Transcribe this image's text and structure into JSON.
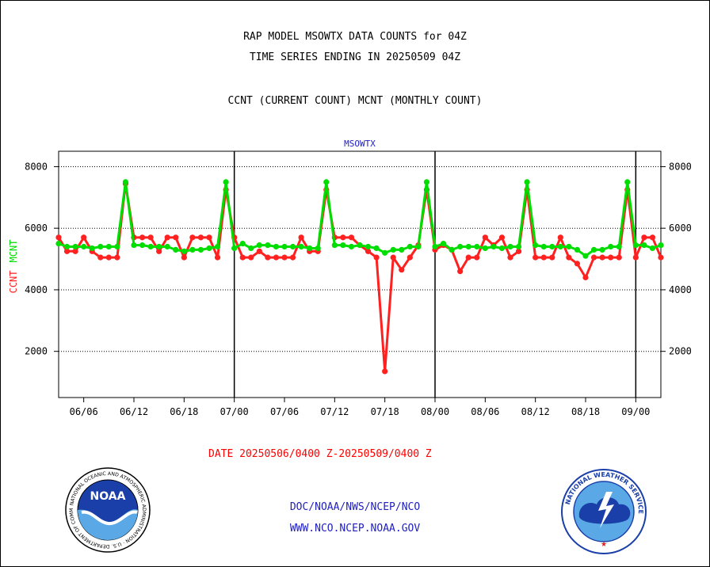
{
  "header": {
    "title_line1": "RAP MODEL MSOWTX DATA COUNTS for 04Z",
    "title_line2": "TIME SERIES ENDING IN 20250509 04Z",
    "subtitle": "CCNT (CURRENT COUNT) MCNT (MONTHLY COUNT)"
  },
  "footer": {
    "date_range": "DATE 20250506/0400 Z-20250509/0400 Z",
    "org_path": "DOC/NOAA/NWS/NCEP/NCO",
    "website": "WWW.NCO.NCEP.NOAA.GOV"
  },
  "logos": {
    "noaa_text": "NOAA",
    "noaa_ring": "NATIONAL OCEANIC AND ATMOSPHERIC ADMINISTRATION · U.S. DEPARTMENT OF COMMERCE",
    "nws_ring": "NATIONAL WEATHER SERVICE"
  },
  "colors": {
    "ccnt": "#ff2020",
    "mcnt": "#00dd00",
    "station": "#2020c0",
    "footer_link": "#2020c0",
    "date": "#ff0000"
  },
  "chart_data": {
    "type": "line",
    "station_label": "MSOWTX",
    "ylabel_ccnt": "CCNT",
    "ylabel_mcnt": "MCNT",
    "ylim": [
      500,
      8500
    ],
    "yticks": [
      2000,
      4000,
      6000,
      8000
    ],
    "ytick_labels": [
      "2000",
      "4000",
      "6000",
      "8000"
    ],
    "xticks": [
      "06/06",
      "06/12",
      "06/18",
      "07/00",
      "07/06",
      "07/12",
      "07/18",
      "08/00",
      "08/06",
      "08/12",
      "08/18",
      "09/00"
    ],
    "x_index_ticks": [
      3,
      9,
      15,
      21,
      27,
      33,
      39,
      45,
      51,
      57,
      63,
      69
    ],
    "x_range": [
      0,
      72
    ],
    "day_separators": [
      21,
      45,
      69
    ],
    "grid": true,
    "series": [
      {
        "name": "CCNT",
        "values": [
          5700,
          5250,
          5250,
          5700,
          5250,
          5050,
          5050,
          5050,
          7450,
          5700,
          5700,
          5700,
          5250,
          5700,
          5700,
          5050,
          5700,
          5700,
          5700,
          5050,
          7250,
          5700,
          5050,
          5050,
          5250,
          5050,
          5050,
          5050,
          5050,
          5700,
          5250,
          5250,
          7250,
          5700,
          5700,
          5700,
          5450,
          5250,
          5050,
          1350,
          5050,
          4650,
          5050,
          5450,
          7250,
          5300,
          5450,
          5300,
          4600,
          5050,
          5050,
          5700,
          5450,
          5700,
          5050,
          5250,
          7250,
          5050,
          5050,
          5050,
          5700,
          5050,
          4850,
          4400,
          5050,
          5050,
          5050,
          5050,
          7250,
          5050,
          5700,
          5700,
          5050
        ]
      },
      {
        "name": "MCNT",
        "values": [
          5500,
          5400,
          5400,
          5400,
          5350,
          5400,
          5400,
          5400,
          7500,
          5450,
          5450,
          5400,
          5400,
          5400,
          5300,
          5250,
          5300,
          5300,
          5350,
          5400,
          7500,
          5350,
          5500,
          5350,
          5450,
          5450,
          5400,
          5400,
          5400,
          5400,
          5350,
          5350,
          7500,
          5450,
          5450,
          5400,
          5450,
          5400,
          5350,
          5200,
          5300,
          5300,
          5400,
          5400,
          7500,
          5400,
          5500,
          5300,
          5400,
          5400,
          5400,
          5350,
          5400,
          5350,
          5400,
          5400,
          7500,
          5450,
          5400,
          5400,
          5400,
          5400,
          5300,
          5100,
          5300,
          5300,
          5400,
          5400,
          7500,
          5450,
          5450,
          5350,
          5450
        ]
      }
    ]
  }
}
